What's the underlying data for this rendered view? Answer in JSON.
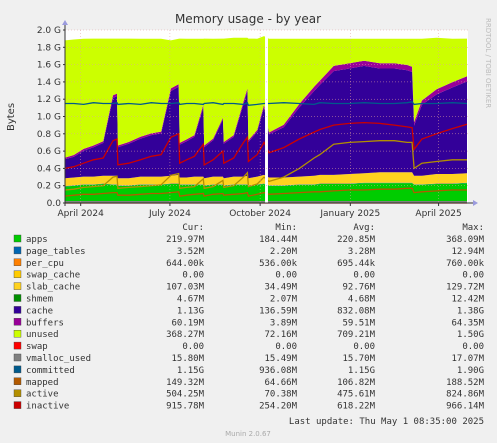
{
  "chart_data": {
    "type": "area",
    "title": "Memory usage - by year",
    "ylabel": "Bytes",
    "side_text": "RRDTOOL / TOBI OETIKER",
    "footer": "Munin 2.0.67",
    "last_update": "Last update: Thu May  1 08:35:00 2025",
    "ylim": [
      0,
      2.0
    ],
    "y_unit": "G (GiB)",
    "y_ticks": [
      {
        "v": 0.0,
        "label": "0.0"
      },
      {
        "v": 0.2,
        "label": "0.2 G"
      },
      {
        "v": 0.4,
        "label": "0.4 G"
      },
      {
        "v": 0.6,
        "label": "0.6 G"
      },
      {
        "v": 0.8,
        "label": "0.8 G"
      },
      {
        "v": 1.0,
        "label": "1.0 G"
      },
      {
        "v": 1.2,
        "label": "1.2 G"
      },
      {
        "v": 1.4,
        "label": "1.4 G"
      },
      {
        "v": 1.6,
        "label": "1.6 G"
      },
      {
        "v": 1.8,
        "label": "1.8 G"
      },
      {
        "v": 2.0,
        "label": "2.0 G"
      }
    ],
    "x_range": [
      "2024-03-16",
      "2025-05-01"
    ],
    "x_ticks": [
      {
        "date": "2024-04-01",
        "label": "April 2024"
      },
      {
        "date": "2024-07-01",
        "label": "July 2024"
      },
      {
        "date": "2024-10-01",
        "label": "October 2024"
      },
      {
        "date": "2025-01-01",
        "label": "January 2025"
      },
      {
        "date": "2025-04-01",
        "label": "April 2025"
      }
    ],
    "gap": [
      "2024-10-06",
      "2024-10-09"
    ],
    "x": [
      "2024-03-16",
      "2024-03-25",
      "2024-04-04",
      "2024-04-14",
      "2024-04-24",
      "2024-05-04",
      "2024-05-08",
      "2024-05-09",
      "2024-05-20",
      "2024-06-01",
      "2024-06-12",
      "2024-06-22",
      "2024-07-02",
      "2024-07-10",
      "2024-07-11",
      "2024-07-18",
      "2024-07-26",
      "2024-08-04",
      "2024-08-05",
      "2024-08-14",
      "2024-08-24",
      "2024-08-25",
      "2024-09-04",
      "2024-09-14",
      "2024-09-18",
      "2024-09-19",
      "2024-09-28",
      "2024-10-05",
      "2024-10-10",
      "2024-10-25",
      "2024-11-10",
      "2024-11-25",
      "2024-12-01",
      "2024-12-15",
      "2024-12-31",
      "2025-01-15",
      "2025-01-31",
      "2025-02-15",
      "2025-02-28",
      "2025-03-05",
      "2025-03-07",
      "2025-03-15",
      "2025-03-30",
      "2025-04-15",
      "2025-04-30"
    ],
    "stack_order": [
      "apps",
      "page_tables",
      "per_cpu",
      "swap_cache",
      "slab_cache",
      "cache",
      "buffers",
      "unused"
    ],
    "series": [
      {
        "name": "apps",
        "color": "#00cc00",
        "values": [
          0.19,
          0.2,
          0.21,
          0.21,
          0.22,
          0.21,
          0.21,
          0.2,
          0.2,
          0.21,
          0.21,
          0.21,
          0.22,
          0.22,
          0.21,
          0.21,
          0.21,
          0.21,
          0.2,
          0.21,
          0.21,
          0.2,
          0.21,
          0.21,
          0.21,
          0.2,
          0.21,
          0.22,
          0.2,
          0.2,
          0.21,
          0.21,
          0.22,
          0.22,
          0.22,
          0.23,
          0.23,
          0.23,
          0.23,
          0.23,
          0.21,
          0.21,
          0.22,
          0.22,
          0.23
        ]
      },
      {
        "name": "page_tables",
        "color": "#0066b3",
        "values": [
          0.004,
          0.004,
          0.004,
          0.004,
          0.004,
          0.004,
          0.004,
          0.004,
          0.004,
          0.004,
          0.004,
          0.004,
          0.004,
          0.004,
          0.004,
          0.004,
          0.004,
          0.004,
          0.004,
          0.004,
          0.004,
          0.004,
          0.004,
          0.004,
          0.004,
          0.004,
          0.004,
          0.004,
          0.004,
          0.004,
          0.004,
          0.004,
          0.004,
          0.004,
          0.004,
          0.004,
          0.004,
          0.004,
          0.004,
          0.004,
          0.004,
          0.004,
          0.004,
          0.004,
          0.004
        ]
      },
      {
        "name": "per_cpu",
        "color": "#ff8000",
        "values": [
          0.001,
          0.001,
          0.001,
          0.001,
          0.001,
          0.001,
          0.001,
          0.001,
          0.001,
          0.001,
          0.001,
          0.001,
          0.001,
          0.001,
          0.001,
          0.001,
          0.001,
          0.001,
          0.001,
          0.001,
          0.001,
          0.001,
          0.001,
          0.001,
          0.001,
          0.001,
          0.001,
          0.001,
          0.001,
          0.001,
          0.001,
          0.001,
          0.001,
          0.001,
          0.001,
          0.001,
          0.001,
          0.001,
          0.001,
          0.001,
          0.001,
          0.001,
          0.001,
          0.001,
          0.001
        ]
      },
      {
        "name": "swap_cache",
        "color": "#ffcc00",
        "values": [
          0,
          0,
          0,
          0,
          0,
          0,
          0,
          0,
          0,
          0,
          0,
          0,
          0,
          0,
          0,
          0,
          0,
          0,
          0,
          0,
          0,
          0,
          0,
          0,
          0,
          0,
          0,
          0,
          0,
          0,
          0,
          0,
          0,
          0,
          0,
          0,
          0,
          0,
          0,
          0,
          0,
          0,
          0,
          0,
          0
        ]
      },
      {
        "name": "slab_cache",
        "color": "#ffd21f",
        "values": [
          0.09,
          0.09,
          0.09,
          0.09,
          0.09,
          0.1,
          0.1,
          0.08,
          0.08,
          0.09,
          0.09,
          0.09,
          0.09,
          0.1,
          0.08,
          0.08,
          0.09,
          0.09,
          0.08,
          0.09,
          0.09,
          0.08,
          0.09,
          0.09,
          0.1,
          0.08,
          0.09,
          0.1,
          0.09,
          0.09,
          0.09,
          0.1,
          0.1,
          0.1,
          0.11,
          0.11,
          0.12,
          0.12,
          0.12,
          0.12,
          0.1,
          0.1,
          0.11,
          0.11,
          0.11
        ]
      },
      {
        "name": "cache",
        "color": "#330099",
        "values": [
          0.22,
          0.24,
          0.3,
          0.34,
          0.38,
          0.9,
          0.92,
          0.36,
          0.4,
          0.44,
          0.48,
          0.5,
          0.98,
          1.02,
          0.38,
          0.42,
          0.46,
          0.8,
          0.36,
          0.42,
          0.66,
          0.4,
          0.46,
          0.84,
          0.98,
          0.42,
          0.52,
          0.78,
          0.5,
          0.58,
          0.8,
          0.98,
          1.04,
          1.2,
          1.22,
          1.24,
          1.2,
          1.2,
          1.18,
          1.16,
          0.58,
          0.82,
          0.92,
          1.0,
          1.06
        ]
      },
      {
        "name": "buffers",
        "color": "#990099",
        "values": [
          0.02,
          0.02,
          0.02,
          0.02,
          0.02,
          0.03,
          0.03,
          0.02,
          0.02,
          0.02,
          0.02,
          0.02,
          0.03,
          0.03,
          0.02,
          0.02,
          0.02,
          0.03,
          0.02,
          0.02,
          0.02,
          0.02,
          0.02,
          0.03,
          0.03,
          0.02,
          0.02,
          0.03,
          0.02,
          0.03,
          0.04,
          0.05,
          0.05,
          0.06,
          0.06,
          0.06,
          0.06,
          0.06,
          0.06,
          0.06,
          0.04,
          0.05,
          0.06,
          0.06,
          0.06
        ]
      },
      {
        "name": "unused",
        "color": "#ccff00",
        "values": [
          1.355,
          1.335,
          1.275,
          1.235,
          1.185,
          0.655,
          0.635,
          1.235,
          1.195,
          1.135,
          1.095,
          1.075,
          0.555,
          0.525,
          1.205,
          1.165,
          1.115,
          0.765,
          1.235,
          1.155,
          0.915,
          1.195,
          1.125,
          0.735,
          0.585,
          1.175,
          1.055,
          0.795,
          1.085,
          0.995,
          0.755,
          0.555,
          0.485,
          0.315,
          0.285,
          0.255,
          0.285,
          0.285,
          0.305,
          0.325,
          0.965,
          0.715,
          0.595,
          0.505,
          0.435
        ]
      }
    ],
    "lines": [
      {
        "name": "swap",
        "color": "#ff0000",
        "values": [
          0,
          0,
          0,
          0,
          0,
          0,
          0,
          0,
          0,
          0,
          0,
          0,
          0,
          0,
          0,
          0,
          0,
          0,
          0,
          0,
          0,
          0,
          0,
          0,
          0,
          0,
          0,
          0,
          0,
          0,
          0,
          0,
          0,
          0,
          0,
          0,
          0,
          0,
          0,
          0,
          0,
          0,
          0,
          0,
          0
        ]
      },
      {
        "name": "vmalloc_used",
        "color": "#808080",
        "values": [
          0.015,
          0.015,
          0.015,
          0.015,
          0.015,
          0.015,
          0.015,
          0.015,
          0.015,
          0.015,
          0.015,
          0.015,
          0.015,
          0.015,
          0.015,
          0.015,
          0.015,
          0.015,
          0.015,
          0.015,
          0.015,
          0.015,
          0.015,
          0.015,
          0.015,
          0.015,
          0.015,
          0.015,
          0.015,
          0.015,
          0.015,
          0.015,
          0.015,
          0.015,
          0.015,
          0.015,
          0.015,
          0.015,
          0.015,
          0.015,
          0.015,
          0.015,
          0.015,
          0.015,
          0.015
        ]
      },
      {
        "name": "committed",
        "color": "#005a8c",
        "values": [
          1.15,
          1.15,
          1.14,
          1.16,
          1.15,
          1.15,
          1.16,
          1.14,
          1.15,
          1.14,
          1.16,
          1.15,
          1.15,
          1.16,
          1.14,
          1.15,
          1.15,
          1.14,
          1.15,
          1.16,
          1.14,
          1.15,
          1.15,
          1.14,
          1.16,
          1.13,
          1.14,
          1.15,
          1.15,
          1.16,
          1.15,
          1.14,
          1.16,
          1.15,
          1.15,
          1.16,
          1.15,
          1.15,
          1.16,
          1.17,
          1.14,
          1.15,
          1.15,
          1.16,
          1.15
        ]
      },
      {
        "name": "mapped",
        "color": "#b35a00",
        "values": [
          0.08,
          0.09,
          0.1,
          0.1,
          0.11,
          0.12,
          0.12,
          0.09,
          0.09,
          0.1,
          0.11,
          0.11,
          0.12,
          0.13,
          0.08,
          0.09,
          0.1,
          0.11,
          0.08,
          0.1,
          0.11,
          0.09,
          0.1,
          0.11,
          0.12,
          0.08,
          0.1,
          0.12,
          0.1,
          0.11,
          0.12,
          0.13,
          0.13,
          0.14,
          0.15,
          0.15,
          0.16,
          0.16,
          0.17,
          0.17,
          0.12,
          0.13,
          0.14,
          0.15,
          0.15
        ]
      },
      {
        "name": "active",
        "color": "#b38f00",
        "values": [
          0.15,
          0.16,
          0.18,
          0.19,
          0.2,
          0.3,
          0.31,
          0.17,
          0.18,
          0.19,
          0.2,
          0.21,
          0.32,
          0.34,
          0.17,
          0.18,
          0.19,
          0.28,
          0.17,
          0.19,
          0.26,
          0.18,
          0.2,
          0.3,
          0.35,
          0.19,
          0.22,
          0.3,
          0.25,
          0.3,
          0.4,
          0.52,
          0.56,
          0.68,
          0.7,
          0.71,
          0.72,
          0.72,
          0.7,
          0.7,
          0.4,
          0.46,
          0.48,
          0.5,
          0.5
        ]
      },
      {
        "name": "inactive",
        "color": "#cc0000",
        "values": [
          0.4,
          0.42,
          0.46,
          0.5,
          0.52,
          0.72,
          0.74,
          0.44,
          0.46,
          0.5,
          0.54,
          0.56,
          0.76,
          0.8,
          0.46,
          0.5,
          0.54,
          0.68,
          0.44,
          0.5,
          0.6,
          0.46,
          0.52,
          0.7,
          0.76,
          0.48,
          0.56,
          0.7,
          0.58,
          0.64,
          0.74,
          0.82,
          0.85,
          0.9,
          0.92,
          0.93,
          0.92,
          0.9,
          0.88,
          0.87,
          0.62,
          0.74,
          0.8,
          0.86,
          0.91
        ]
      }
    ],
    "legend_headers": [
      "Cur:",
      "Min:",
      "Avg:",
      "Max:"
    ],
    "legend": [
      {
        "name": "apps",
        "color": "#00cc00",
        "cur": "219.97M",
        "min": "184.44M",
        "avg": "220.85M",
        "max": "368.09M"
      },
      {
        "name": "page_tables",
        "color": "#0066b3",
        "cur": "3.52M",
        "min": "2.20M",
        "avg": "3.28M",
        "max": "12.94M"
      },
      {
        "name": "per_cpu",
        "color": "#ff8000",
        "cur": "644.00k",
        "min": "536.00k",
        "avg": "695.44k",
        "max": "760.00k"
      },
      {
        "name": "swap_cache",
        "color": "#ffcc00",
        "cur": "0.00",
        "min": "0.00",
        "avg": "0.00",
        "max": "0.00"
      },
      {
        "name": "slab_cache",
        "color": "#ffd21f",
        "cur": "107.03M",
        "min": "34.49M",
        "avg": "92.76M",
        "max": "129.72M"
      },
      {
        "name": "shmem",
        "color": "#008f00",
        "cur": "4.67M",
        "min": "2.07M",
        "avg": "4.68M",
        "max": "12.42M"
      },
      {
        "name": "cache",
        "color": "#330099",
        "cur": "1.13G",
        "min": "136.59M",
        "avg": "832.08M",
        "max": "1.38G"
      },
      {
        "name": "buffers",
        "color": "#990099",
        "cur": "60.19M",
        "min": "3.89M",
        "avg": "59.51M",
        "max": "64.35M"
      },
      {
        "name": "unused",
        "color": "#ccff00",
        "cur": "368.27M",
        "min": "72.16M",
        "avg": "709.21M",
        "max": "1.50G"
      },
      {
        "name": "swap",
        "color": "#ff0000",
        "cur": "0.00",
        "min": "0.00",
        "avg": "0.00",
        "max": "0.00"
      },
      {
        "name": "vmalloc_used",
        "color": "#808080",
        "cur": "15.80M",
        "min": "15.49M",
        "avg": "15.70M",
        "max": "17.07M"
      },
      {
        "name": "committed",
        "color": "#005a8c",
        "cur": "1.15G",
        "min": "936.08M",
        "avg": "1.15G",
        "max": "1.90G"
      },
      {
        "name": "mapped",
        "color": "#b35a00",
        "cur": "149.32M",
        "min": "64.66M",
        "avg": "106.82M",
        "max": "188.52M"
      },
      {
        "name": "active",
        "color": "#b38f00",
        "cur": "504.25M",
        "min": "70.38M",
        "avg": "475.61M",
        "max": "824.86M"
      },
      {
        "name": "inactive",
        "color": "#cc0000",
        "cur": "915.78M",
        "min": "254.20M",
        "avg": "618.22M",
        "max": "966.14M"
      }
    ]
  }
}
